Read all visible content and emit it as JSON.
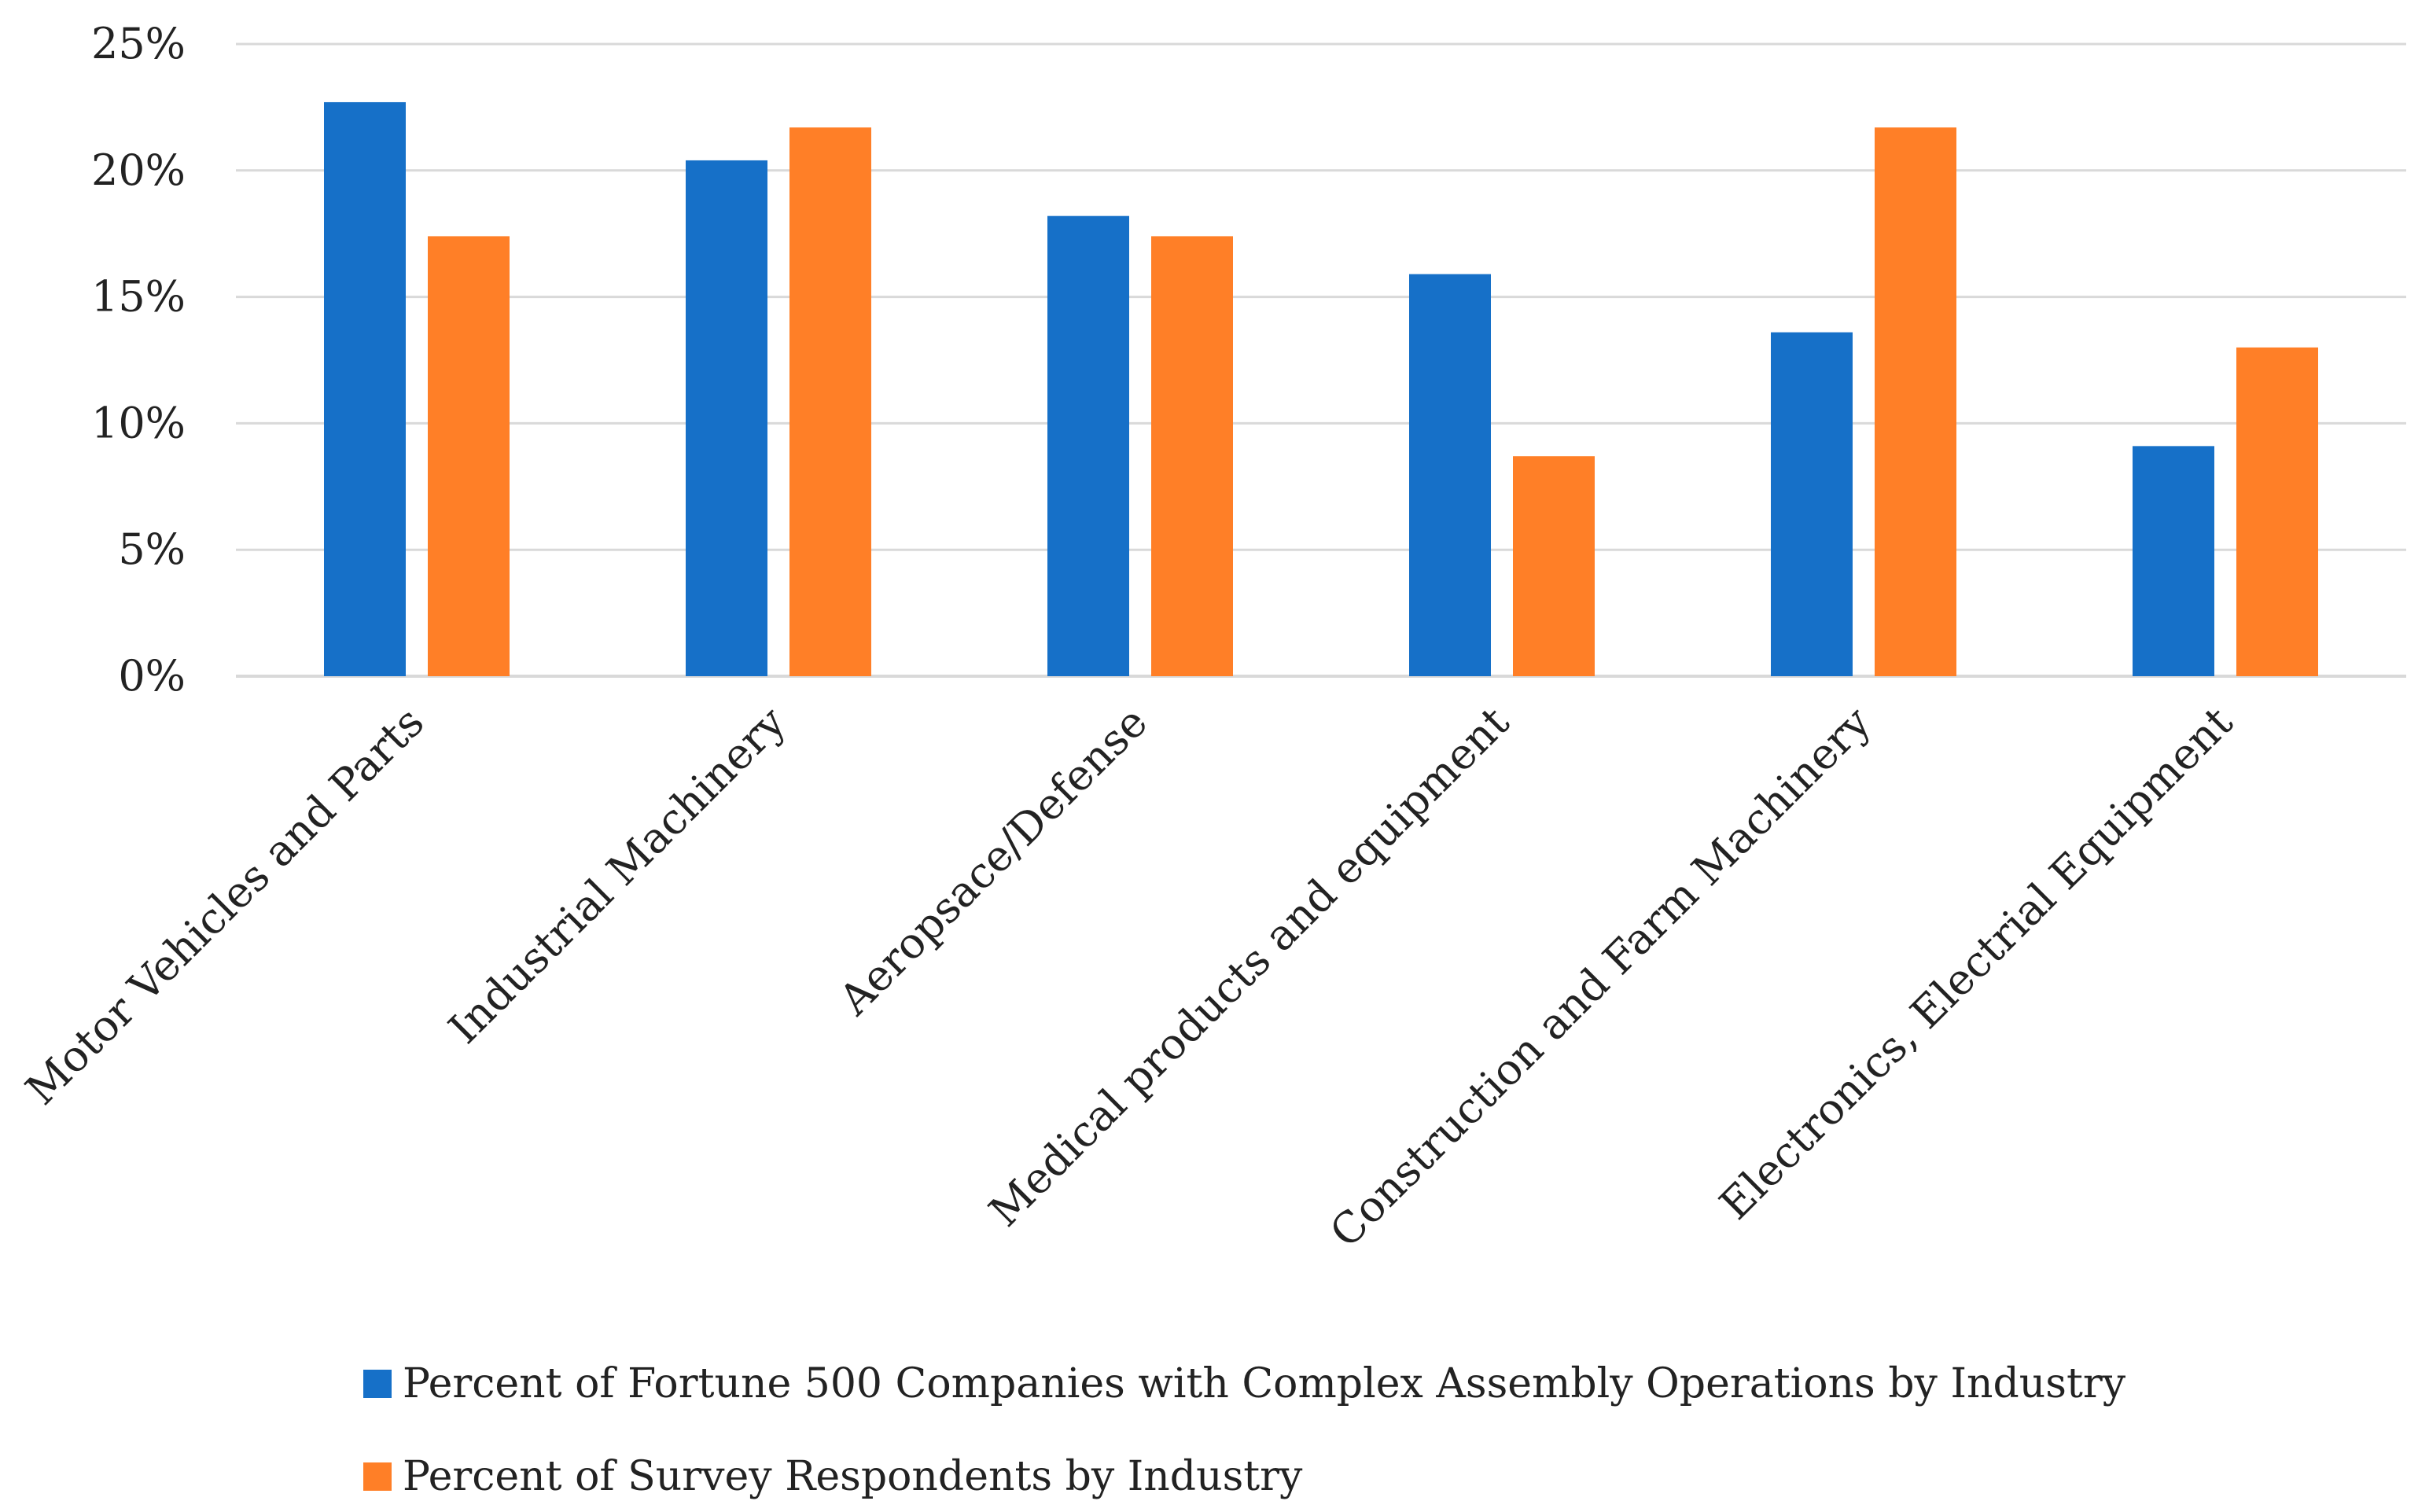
{
  "chart_data": {
    "type": "bar",
    "categories": [
      "Motor Vehicles and Parts",
      "Industrial Machinery",
      "Aeropsace/Defense",
      "Medical products and equipment",
      "Construction and Farm Machinery",
      "Electronics, Electrial Equipment"
    ],
    "series": [
      {
        "name": "Percent of Fortune 500 Companies with Complex Assembly Operations by Industry",
        "color": "#1670C8",
        "values": [
          22.7,
          20.4,
          18.2,
          15.9,
          13.6,
          9.1
        ]
      },
      {
        "name": "Percent of Survey Respondents by Industry",
        "color": "#FF7F27",
        "values": [
          17.4,
          21.7,
          17.4,
          8.7,
          21.7,
          13.0
        ]
      }
    ],
    "ylim": [
      0,
      25
    ],
    "yticks": [
      0,
      5,
      10,
      15,
      20,
      25
    ],
    "ytick_labels": [
      "0%",
      "5%",
      "10%",
      "15%",
      "20%",
      "25%"
    ],
    "grid": true,
    "grid_color": "#D9D9D9",
    "legend_position": "bottom-left",
    "title": "",
    "xlabel": "",
    "ylabel": ""
  }
}
